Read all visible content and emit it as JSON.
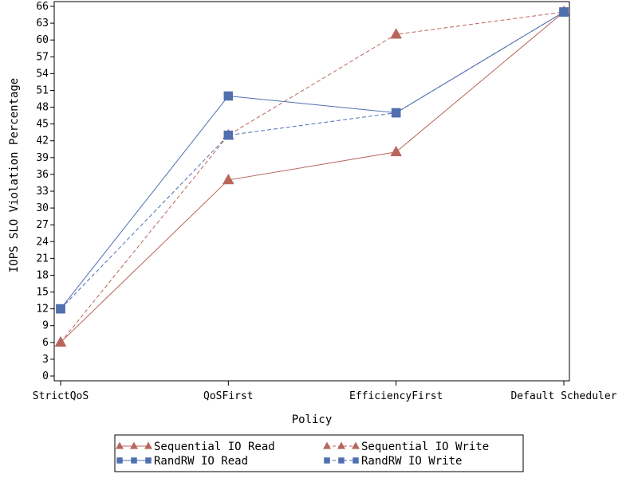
{
  "chart_data": {
    "type": "line",
    "categories": [
      "StrictQoS",
      "QoSFirst",
      "EfficiencyFirst",
      "Default Scheduler"
    ],
    "xlabel": "Policy",
    "ylabel": "IOPS SLO Violation Percentage",
    "ylim": [
      0,
      66
    ],
    "yticks": [
      0,
      3,
      6,
      9,
      12,
      15,
      18,
      21,
      24,
      27,
      30,
      33,
      36,
      39,
      42,
      45,
      48,
      51,
      54,
      57,
      60,
      63,
      66
    ],
    "grid": false,
    "legend_position": "bottom",
    "series": [
      {
        "name": "Sequential IO Read",
        "values": [
          6,
          35,
          40,
          65
        ],
        "color": "#b8665c",
        "dash": "solid",
        "marker": "triangle"
      },
      {
        "name": "Sequential IO Write",
        "values": [
          6,
          43,
          61,
          65
        ],
        "color": "#b8665c",
        "dash": "dashed",
        "marker": "triangle"
      },
      {
        "name": "RandRW IO Read",
        "values": [
          12,
          50,
          47,
          65
        ],
        "color": "#4f6faf",
        "dash": "solid",
        "marker": "square"
      },
      {
        "name": "RandRW IO Write",
        "values": [
          12,
          43,
          47,
          65
        ],
        "color": "#4f6faf",
        "dash": "dashed",
        "marker": "square"
      }
    ]
  }
}
